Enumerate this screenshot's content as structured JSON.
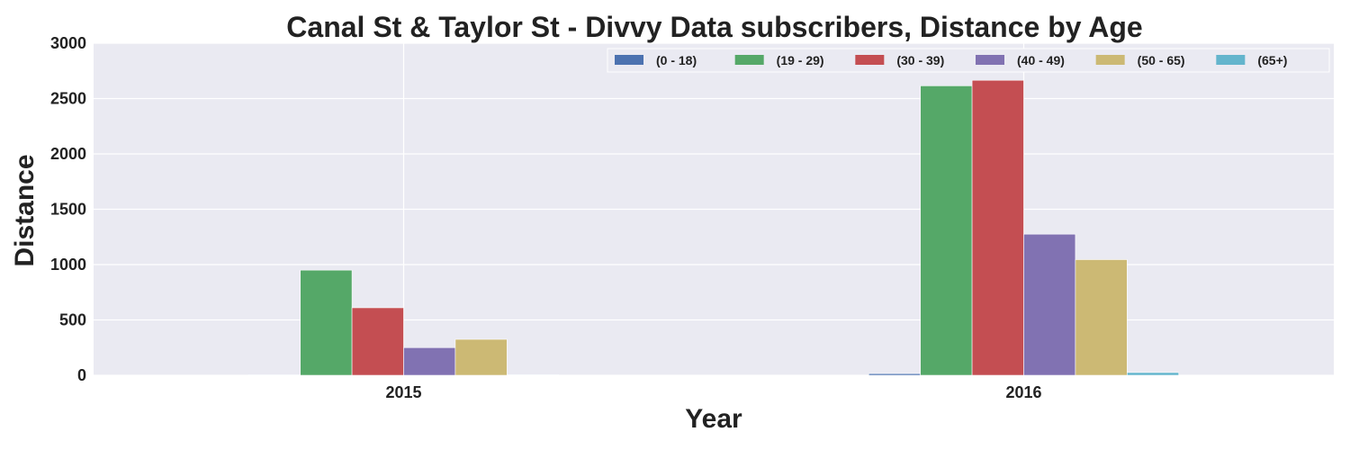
{
  "chart_data": {
    "type": "bar",
    "title": "Canal St & Taylor St - Divvy Data subscribers, Distance by Age",
    "xlabel": "Year",
    "ylabel": "Distance",
    "categories": [
      "2015",
      "2016"
    ],
    "ylim": [
      0,
      3000
    ],
    "yticks": [
      "0",
      "500",
      "1000",
      "1500",
      "2000",
      "2500",
      "3000"
    ],
    "grid": true,
    "legend_position": "top-right",
    "series": [
      {
        "name": "(0 - 18)",
        "color": "#4c72b0",
        "values": [
          5,
          15
        ]
      },
      {
        "name": "(19 - 29)",
        "color": "#55a868",
        "values": [
          950,
          2615
        ]
      },
      {
        "name": "(30 - 39)",
        "color": "#c44e52",
        "values": [
          610,
          2665
        ]
      },
      {
        "name": "(40 - 49)",
        "color": "#8172b2",
        "values": [
          250,
          1275
        ]
      },
      {
        "name": "(50 - 65)",
        "color": "#ccb974",
        "values": [
          325,
          1045
        ]
      },
      {
        "name": "(65+)",
        "color": "#64b5cd",
        "values": [
          5,
          25
        ]
      }
    ]
  }
}
